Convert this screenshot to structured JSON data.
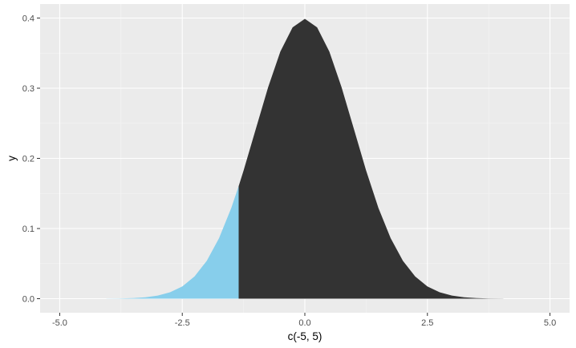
{
  "chart_data": {
    "type": "area",
    "title": "",
    "xlabel": "c(-5, 5)",
    "ylabel": "y",
    "xlim": [
      -5.4,
      5.4
    ],
    "ylim": [
      -0.02,
      0.42
    ],
    "x_ticks": [
      -5.0,
      -2.5,
      0.0,
      2.5,
      5.0
    ],
    "x_tick_labels": [
      "-5.0",
      "-2.5",
      "0.0",
      "2.5",
      "5.0"
    ],
    "y_ticks": [
      0.0,
      0.1,
      0.2,
      0.3,
      0.4
    ],
    "y_tick_labels": [
      "0.0",
      "0.1",
      "0.2",
      "0.3",
      "0.4"
    ],
    "grid": true,
    "legend": "none",
    "series": [
      {
        "fill": "#87CEEB",
        "x": [
          -4.05,
          -3.8,
          -3.5,
          -3.25,
          -3.0,
          -2.75,
          -2.5,
          -2.25,
          -2.0,
          -1.75,
          -1.5,
          -1.35
        ],
        "values": [
          0.0001,
          0.0003,
          0.0009,
          0.002,
          0.0044,
          0.0091,
          0.0175,
          0.0317,
          0.054,
          0.0863,
          0.1295,
          0.1604
        ]
      },
      {
        "fill": "#333333",
        "x": [
          -1.35,
          -1.25,
          -1.0,
          -0.75,
          -0.5,
          -0.25,
          0.0,
          0.25,
          0.5,
          0.75,
          1.0,
          1.25,
          1.5,
          1.75,
          2.0,
          2.25,
          2.5,
          2.75,
          3.0,
          3.25,
          3.5,
          3.75,
          4.05
        ],
        "values": [
          0.1604,
          0.1826,
          0.242,
          0.3011,
          0.3521,
          0.3867,
          0.3989,
          0.3867,
          0.3521,
          0.3011,
          0.242,
          0.1826,
          0.1295,
          0.0863,
          0.054,
          0.0317,
          0.0175,
          0.0091,
          0.0044,
          0.002,
          0.0009,
          0.0003,
          0.0001
        ]
      }
    ],
    "colors": {
      "panel_background": "#EBEBEB",
      "major_grid": "#FFFFFF",
      "minor_grid": "#F5F5F5",
      "tick_mark": "#333333"
    }
  }
}
